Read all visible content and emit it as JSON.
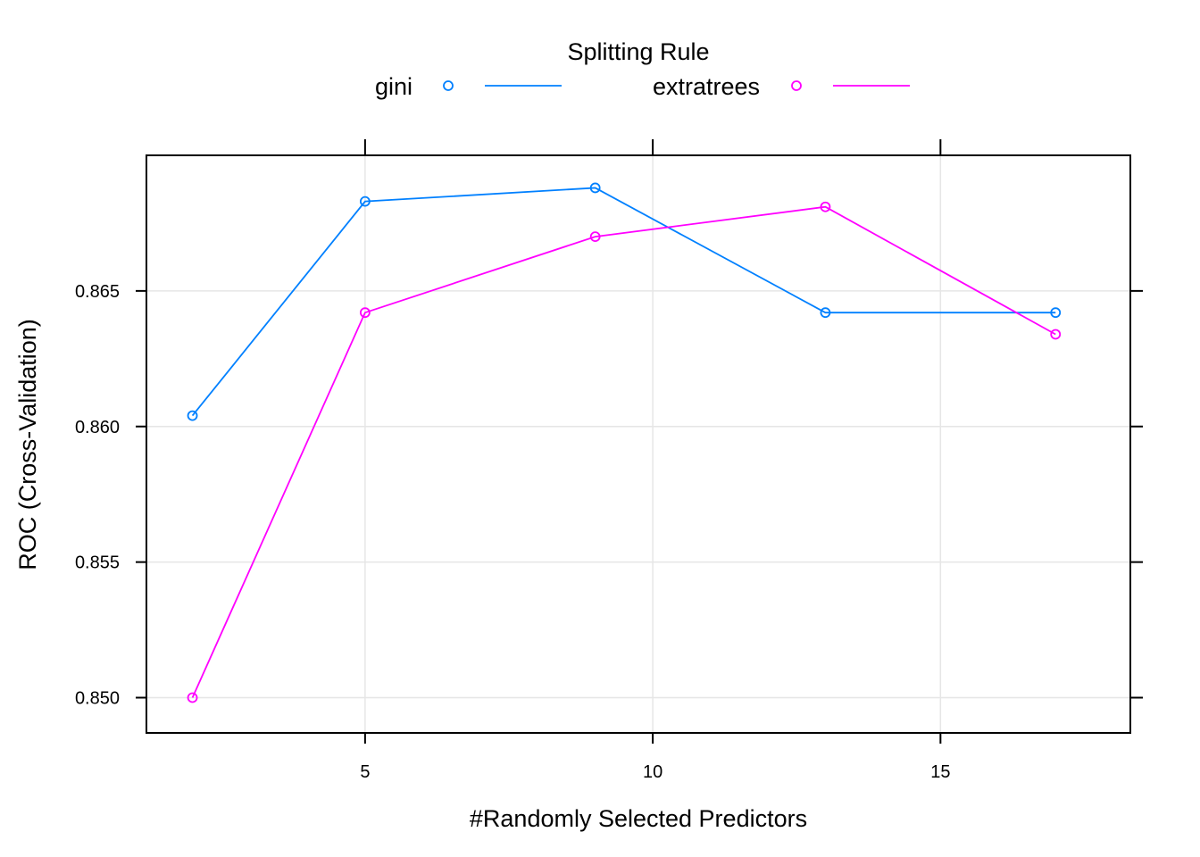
{
  "chart_data": {
    "type": "line",
    "xlabel": "#Randomly Selected Predictors",
    "ylabel": "ROC (Cross-Validation)",
    "xlim": [
      1.2,
      18.3
    ],
    "ylim": [
      0.8487,
      0.87
    ],
    "xticks": [
      5,
      10,
      15
    ],
    "xtick_labels": [
      "5",
      "10",
      "15"
    ],
    "yticks": [
      0.85,
      0.855,
      0.86,
      0.865
    ],
    "ytick_labels": [
      "0.850",
      "0.855",
      "0.860",
      "0.865"
    ],
    "grid": true,
    "legend": {
      "title": "Splitting Rule",
      "position": "top"
    },
    "series": [
      {
        "name": "gini",
        "color": "#0080ff",
        "marker": "open-circle",
        "x": [
          2,
          5,
          9,
          13,
          17
        ],
        "y": [
          0.8604,
          0.8683,
          0.8688,
          0.8642,
          0.8642
        ]
      },
      {
        "name": "extratrees",
        "color": "#ff00ff",
        "marker": "open-circle",
        "x": [
          2,
          5,
          9,
          13,
          17
        ],
        "y": [
          0.85,
          0.8642,
          0.867,
          0.8681,
          0.8634
        ]
      }
    ]
  }
}
